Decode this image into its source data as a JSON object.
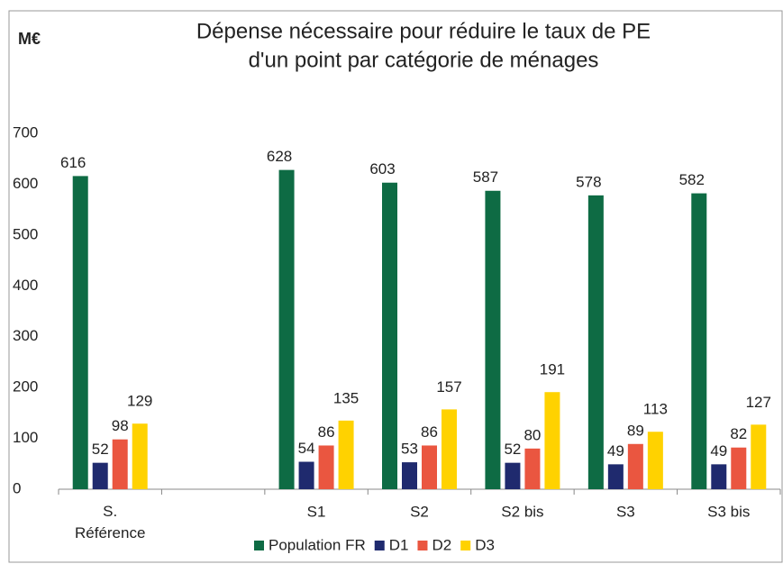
{
  "chart_data": {
    "type": "bar",
    "title": [
      "Dépense nécessaire pour réduire le taux de PE",
      "d'un point par catégorie de ménages"
    ],
    "y_label": "M€",
    "categories": [
      "S. Référence",
      null,
      "S1",
      "S2",
      "S2 bis",
      "S3",
      "S3 bis"
    ],
    "series": [
      {
        "name": "Population FR",
        "color": "#0e6b44",
        "values": [
          616,
          null,
          628,
          603,
          587,
          578,
          582
        ]
      },
      {
        "name": "D1",
        "color": "#1f2a6e",
        "values": [
          52,
          null,
          54,
          53,
          52,
          49,
          49
        ]
      },
      {
        "name": "D2",
        "color": "#ea5640",
        "values": [
          98,
          null,
          86,
          86,
          80,
          89,
          82
        ]
      },
      {
        "name": "D3",
        "color": "#ffd200",
        "values": [
          129,
          null,
          135,
          157,
          191,
          113,
          127
        ]
      }
    ],
    "ylim": [
      0,
      700
    ],
    "yticks": [
      0,
      100,
      200,
      300,
      400,
      500,
      600,
      700
    ],
    "grid": false
  }
}
